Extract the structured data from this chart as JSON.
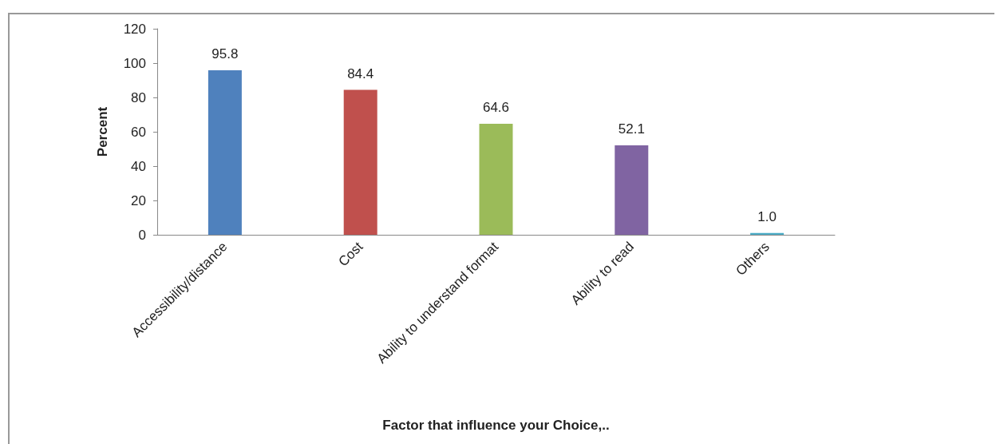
{
  "chart_data": {
    "type": "bar",
    "xlabel": "Factor that influence your Choice,..",
    "ylabel": "Percent",
    "categories": [
      "Accessibility/distance",
      "Cost",
      "Ability to understand format",
      "Ability to read",
      "Others"
    ],
    "values": [
      95.8,
      84.4,
      64.6,
      52.1,
      1.0
    ],
    "colors": [
      "#4f81bd",
      "#c0504d",
      "#9bbb59",
      "#8064a2",
      "#4bacc6"
    ],
    "value_labels": [
      "95.8",
      "84.4",
      "64.6",
      "52.1",
      "1.0"
    ],
    "ylim": [
      0,
      120
    ],
    "yticks": [
      0,
      20,
      40,
      60,
      80,
      100,
      120
    ],
    "grid": false
  }
}
